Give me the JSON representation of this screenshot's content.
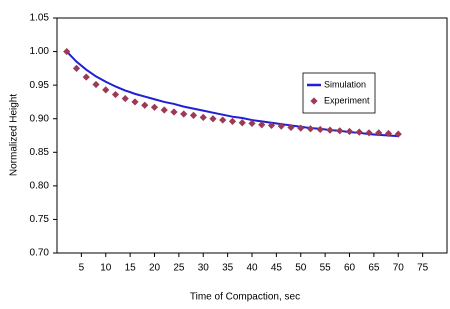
{
  "chart_data": {
    "type": "line",
    "x_label": "Time of Compaction, sec",
    "y_label": "Normalized Height",
    "x": [
      2,
      4,
      6,
      8,
      10,
      12,
      14,
      16,
      18,
      20,
      22,
      24,
      26,
      28,
      30,
      32,
      34,
      36,
      38,
      40,
      42,
      44,
      46,
      48,
      50,
      52,
      54,
      56,
      58,
      60,
      62,
      64,
      66,
      68,
      70
    ],
    "series": [
      {
        "name": "Simulation",
        "type": "line",
        "color": "#1f1fd6",
        "values": [
          1.0,
          0.985,
          0.973,
          0.963,
          0.955,
          0.948,
          0.942,
          0.937,
          0.933,
          0.929,
          0.925,
          0.922,
          0.918,
          0.915,
          0.912,
          0.909,
          0.906,
          0.903,
          0.901,
          0.898,
          0.896,
          0.894,
          0.892,
          0.89,
          0.888,
          0.886,
          0.885,
          0.883,
          0.882,
          0.88,
          0.879,
          0.877,
          0.876,
          0.875,
          0.874
        ]
      },
      {
        "name": "Experiment",
        "type": "scatter",
        "color": "#9b3a55",
        "values": [
          1.0,
          0.975,
          0.962,
          0.951,
          0.943,
          0.936,
          0.93,
          0.925,
          0.92,
          0.917,
          0.913,
          0.91,
          0.907,
          0.905,
          0.902,
          0.9,
          0.898,
          0.896,
          0.894,
          0.893,
          0.891,
          0.89,
          0.889,
          0.887,
          0.886,
          0.885,
          0.884,
          0.883,
          0.882,
          0.881,
          0.88,
          0.879,
          0.879,
          0.878,
          0.877
        ]
      }
    ],
    "xlim": [
      0,
      80
    ],
    "xticks": [
      5,
      10,
      15,
      20,
      25,
      30,
      35,
      40,
      45,
      50,
      55,
      60,
      65,
      70,
      75
    ],
    "ylim": [
      0.7,
      1.05
    ],
    "yticks": [
      {
        "value": 0.7,
        "label": "0.70"
      },
      0.75,
      {
        "value": 0.8,
        "label": "0.80"
      },
      0.85,
      {
        "value": 0.9,
        "label": "0.90"
      },
      0.95,
      {
        "value": 1.0,
        "label": "1.00"
      },
      1.05
    ],
    "legend": "center right",
    "grid": false
  }
}
